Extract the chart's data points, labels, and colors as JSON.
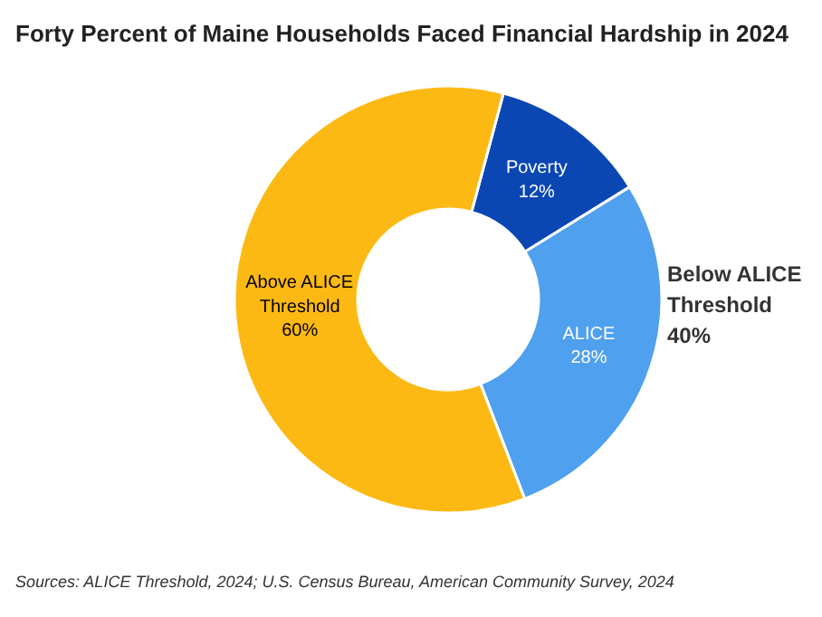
{
  "chart_data": {
    "type": "donut",
    "title": "Forty Percent of Maine Households Faced Financial Hardship in 2024",
    "categories": [
      "Poverty",
      "ALICE",
      "Above ALICE Threshold"
    ],
    "values": [
      12,
      28,
      60
    ],
    "value_labels": [
      "12%",
      "28%",
      "60%"
    ],
    "colors": [
      "#0b47b3",
      "#4fa0ee",
      "#fdb913"
    ],
    "annotations": [
      "Below ALICE Threshold 40%",
      "Sources: ALICE Threshold, 2024; U.S. Census Bureau, American Community Survey, 2024"
    ]
  }
}
